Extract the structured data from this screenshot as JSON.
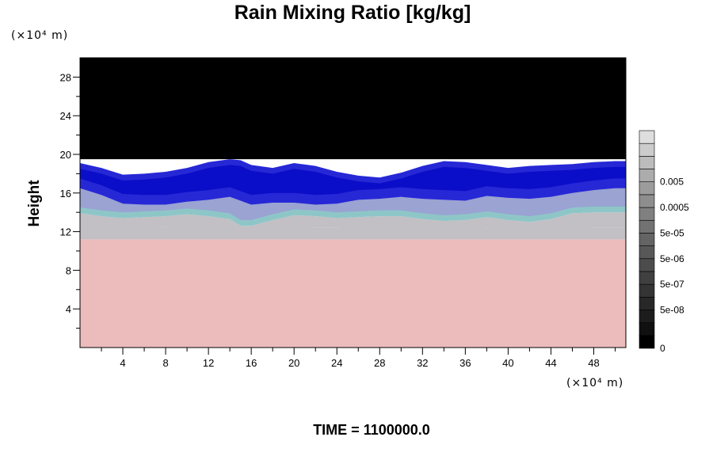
{
  "chart_data": {
    "type": "heatmap",
    "title": "Rain Mixing Ratio [kg/kg]",
    "ylabel": "Height",
    "x_unit": "(×10⁴ m)",
    "y_unit": "(×10⁴ m)",
    "footer": "TIME = 1100000.0",
    "xlim": [
      0,
      51
    ],
    "ylim": [
      0,
      30
    ],
    "x_ticks": [
      4,
      8,
      12,
      16,
      20,
      24,
      28,
      32,
      36,
      40,
      44,
      48
    ],
    "y_ticks": [
      4,
      8,
      12,
      16,
      20,
      24,
      28
    ],
    "x_minor_step": 2,
    "y_minor_step": 2,
    "layers": [
      {
        "name": "lower",
        "y_from": 0,
        "y_to": 11.2,
        "color": "#ecbcbc"
      },
      {
        "name": "transition",
        "y_from": 11.2,
        "y_to": 12.4,
        "color": "#c2c0c4"
      },
      {
        "name": "upper",
        "y_from": 19.5,
        "y_to": 30,
        "color": "#000000"
      }
    ],
    "band_profiles": {
      "x": [
        0,
        2,
        4,
        6,
        8,
        10,
        12,
        14,
        15,
        16,
        18,
        20,
        22,
        24,
        26,
        28,
        30,
        32,
        34,
        36,
        38,
        40,
        42,
        44,
        46,
        48,
        50,
        51
      ],
      "top": [
        19.1,
        18.6,
        17.9,
        18.0,
        18.2,
        18.6,
        19.2,
        19.5,
        19.4,
        18.9,
        18.6,
        19.1,
        18.8,
        18.2,
        17.8,
        17.6,
        18.1,
        18.8,
        19.3,
        19.2,
        18.9,
        18.6,
        18.8,
        18.9,
        19.0,
        19.2,
        19.3,
        19.3
      ],
      "blue_bottom": [
        16.5,
        15.8,
        14.9,
        14.8,
        14.8,
        15.1,
        15.3,
        15.6,
        15.2,
        14.8,
        15.0,
        15.0,
        14.8,
        14.9,
        15.3,
        15.4,
        15.6,
        15.4,
        15.3,
        15.2,
        15.7,
        15.5,
        15.4,
        15.6,
        16.0,
        16.3,
        16.5,
        16.5
      ],
      "cyan_bottom": [
        13.9,
        13.6,
        13.4,
        13.5,
        13.6,
        13.8,
        13.6,
        13.3,
        12.6,
        12.6,
        13.2,
        13.7,
        13.6,
        13.4,
        13.5,
        13.6,
        13.6,
        13.3,
        13.1,
        13.2,
        13.5,
        13.2,
        13.0,
        13.3,
        13.9,
        14.0,
        14.0,
        14.0
      ],
      "gray_bottom": [
        12.3,
        12.0,
        12.2,
        12.3,
        12.4,
        12.3,
        12.1,
        12.0,
        11.9,
        12.0,
        12.1,
        12.3,
        12.4,
        12.4,
        12.3,
        12.2,
        12.1,
        12.2,
        12.2,
        12.3,
        12.4,
        12.3,
        12.2,
        12.2,
        12.3,
        12.4,
        12.4,
        12.4
      ]
    },
    "band_colors": {
      "deep_blue": "#0b0ec8",
      "blue": "#2628d6",
      "lavender": "#9e9ad4",
      "cyan": "#8ec6c8",
      "gray": "#c2c0c4"
    },
    "colorbar": {
      "levels": 17,
      "colors": [
        "#000000",
        "#101010",
        "#1c1c1c",
        "#282828",
        "#343434",
        "#404040",
        "#4c4c4c",
        "#585858",
        "#646464",
        "#727272",
        "#808080",
        "#8e8e8e",
        "#9c9c9c",
        "#acacac",
        "#bcbcbc",
        "#cccccc",
        "#dedede"
      ],
      "labels": [
        {
          "text": "0",
          "level": 0
        },
        {
          "text": "5e-08",
          "level": 3
        },
        {
          "text": "5e-07",
          "level": 5
        },
        {
          "text": "5e-06",
          "level": 7
        },
        {
          "text": "5e-05",
          "level": 9
        },
        {
          "text": "0.0005",
          "level": 11
        },
        {
          "text": "0.005",
          "level": 13
        }
      ]
    }
  }
}
